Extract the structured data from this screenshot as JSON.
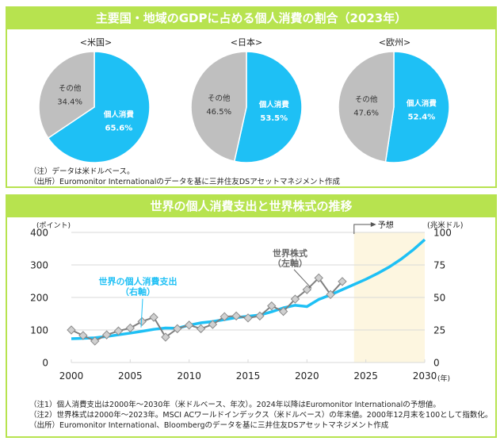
{
  "top_panel": {
    "title": "主要国・地域のGDPに占める個人消費の割合（2023年）",
    "notes": [
      "（注）データは米ドルベース。",
      "（出所）Euromonitor Internationalのデータを基に三井住友DSアセットマネジメント作成"
    ]
  },
  "bottom_panel": {
    "title": "世界の個人消費支出と世界株式の推移",
    "notes": [
      "（注1）個人消費支出は2000年～2030年（米ドルベース、年次）。2024年以降はEuromonitor Internationalの予想値。",
      "（注2）世界株式は2000年～2023年。MSCI ACワールドインデックス（米ドルベース）の年末値。2000年12月末を100として指数化。",
      "（出所）Euromonitor International、Bloombergのデータを基に三井住友DSアセットマネジメント作成"
    ]
  },
  "colors": {
    "accent_green": "#b7e34f",
    "consumption_blue": "#1ec0f5",
    "other_gray": "#bfbfbf",
    "stock_line": "#7f7f7f",
    "marker_fill": "#d0d0d0",
    "forecast_band": "#fdf6e0"
  },
  "chart_data": [
    {
      "type": "pie",
      "title": "<米国>",
      "slices": [
        {
          "label": "個人消費",
          "value": 65.6,
          "display": "65.6%"
        },
        {
          "label": "その他",
          "value": 34.4,
          "display": "34.4%"
        }
      ]
    },
    {
      "type": "pie",
      "title": "<日本>",
      "slices": [
        {
          "label": "個人消費",
          "value": 53.5,
          "display": "53.5%"
        },
        {
          "label": "その他",
          "value": 46.5,
          "display": "46.5%"
        }
      ]
    },
    {
      "type": "pie",
      "title": "<欧州>",
      "slices": [
        {
          "label": "個人消費",
          "value": 52.4,
          "display": "52.4%"
        },
        {
          "label": "その他",
          "value": 47.6,
          "display": "47.6%"
        }
      ]
    },
    {
      "type": "line",
      "title": "世界の個人消費支出と世界株式の推移",
      "xlabel": "(年)",
      "ylabel_left": "(ポイント)",
      "ylabel_right": "(兆米ドル)",
      "xlim": [
        2000,
        2030
      ],
      "ylim_left": [
        0,
        400
      ],
      "ylim_right": [
        0,
        100
      ],
      "x_ticks": [
        2000,
        2005,
        2010,
        2015,
        2020,
        2025,
        2030
      ],
      "y_ticks_left": [
        0,
        100,
        200,
        300,
        400
      ],
      "y_ticks_right": [
        0,
        25,
        50,
        75,
        100
      ],
      "grid": true,
      "forecast_region": {
        "from": 2024,
        "to": 2030,
        "label": "予想"
      },
      "series": [
        {
          "name": "世界株式",
          "annotation": [
            "世界株式",
            "（左軸）"
          ],
          "axis": "left",
          "marker": "diamond",
          "x": [
            2000,
            2001,
            2002,
            2003,
            2004,
            2005,
            2006,
            2007,
            2008,
            2009,
            2010,
            2011,
            2012,
            2013,
            2014,
            2015,
            2016,
            2017,
            2018,
            2019,
            2020,
            2021,
            2022,
            2023
          ],
          "values": [
            100,
            83,
            66,
            85,
            97,
            106,
            126,
            139,
            78,
            104,
            115,
            104,
            117,
            141,
            143,
            137,
            143,
            174,
            157,
            195,
            224,
            260,
            209,
            249
          ]
        },
        {
          "name": "世界の個人消費支出",
          "annotation": [
            "世界の個人消費支出",
            "（右軸）"
          ],
          "axis": "right",
          "x": [
            2000,
            2001,
            2002,
            2003,
            2004,
            2005,
            2006,
            2007,
            2008,
            2009,
            2010,
            2011,
            2012,
            2013,
            2014,
            2015,
            2016,
            2017,
            2018,
            2019,
            2020,
            2021,
            2022,
            2023,
            2024,
            2025,
            2026,
            2027,
            2028,
            2029,
            2030
          ],
          "values": [
            18.3,
            18.6,
            19.0,
            20.0,
            21.3,
            22.6,
            24.0,
            25.5,
            26.5,
            26.3,
            28.7,
            30.5,
            31.5,
            33.0,
            34.5,
            35.5,
            36.5,
            39.0,
            42.0,
            44.0,
            43.0,
            48.5,
            52.0,
            56.0,
            60.0,
            64.0,
            68.5,
            73.5,
            79.5,
            86.5,
            94.5
          ]
        }
      ]
    }
  ]
}
